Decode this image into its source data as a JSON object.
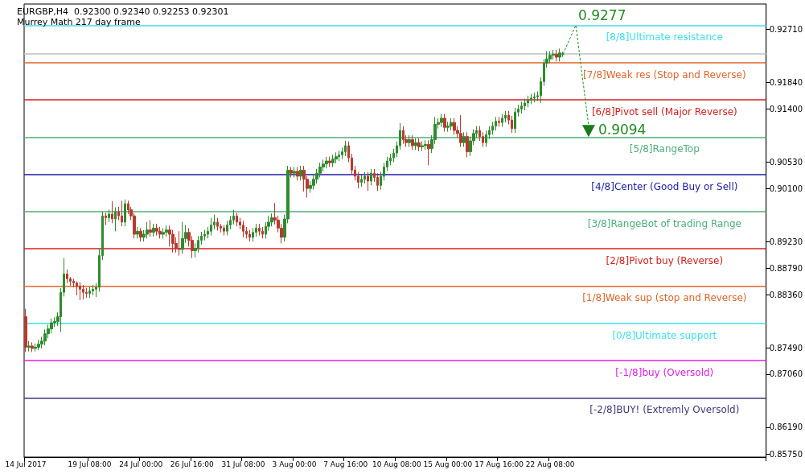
{
  "chart_data": {
    "type": "candlestick",
    "title": "EURGBP,H4  0.92300 0.92340 0.92253 0.92301",
    "subtitle": "Murrey Math 217 day frame",
    "categories": [
      "14 Jul 2017",
      null,
      null,
      null,
      null,
      null,
      null,
      null,
      null,
      null,
      null,
      null,
      null,
      null,
      null,
      null,
      null,
      null,
      null,
      null,
      "19 Jul 08:00",
      null,
      null,
      null,
      null,
      null,
      null,
      null,
      null,
      null,
      null,
      null,
      null,
      null,
      null,
      null,
      "24 Jul 00:00",
      null,
      null,
      null,
      null,
      null,
      null,
      null,
      null,
      null,
      null,
      null,
      null,
      null,
      null,
      null,
      "26 Jul 16:00",
      null,
      null,
      null,
      null,
      null,
      null,
      null,
      null,
      null,
      null,
      null,
      null,
      null,
      null,
      null,
      "31 Jul 08:00",
      null,
      null,
      null,
      null,
      null,
      null,
      null,
      null,
      null,
      null,
      null,
      null,
      null,
      null,
      null,
      "3 Aug 00:00",
      null,
      null,
      null,
      null,
      null,
      null,
      null,
      null,
      null,
      null,
      null,
      null,
      null,
      null,
      null,
      "7 Aug 16:00",
      null,
      null,
      null,
      null,
      null,
      null,
      null,
      null,
      null,
      null,
      null,
      null,
      null,
      null,
      null,
      "10 Aug 08:00",
      null,
      null,
      null,
      null,
      null,
      null,
      null,
      null,
      null,
      null,
      null,
      null,
      null,
      null,
      null,
      "15 Aug 00:00",
      null,
      null,
      null,
      null,
      null,
      null,
      null,
      null,
      null,
      null,
      null,
      null,
      null,
      null,
      null,
      "17 Aug 16:00",
      null,
      null,
      null,
      null,
      null,
      null,
      null,
      null,
      null,
      null,
      null,
      null,
      null,
      null,
      null,
      "22 Aug 08:00",
      null,
      null,
      null,
      null,
      null,
      null,
      null,
      null,
      null,
      null,
      null,
      null,
      null,
      null,
      null,
      null,
      null,
      null,
      null,
      null,
      null,
      null,
      null,
      null,
      null,
      null,
      null,
      null,
      null,
      null,
      null,
      null,
      null,
      null,
      null,
      null,
      null,
      null,
      null,
      null,
      null,
      null,
      null,
      null,
      null,
      null,
      null,
      null,
      null,
      null,
      null,
      null,
      null,
      null,
      null,
      null,
      null,
      null,
      null,
      null,
      null,
      null,
      null,
      null,
      null,
      null,
      null
    ],
    "colors": [
      "#b83a2e",
      "#2e8b2e",
      "#b83a2e",
      "#2e8b2e",
      "#2e8b2e",
      "#2e8b2e",
      "#2e8b2e",
      "#2e8b2e",
      "#2e8b2e",
      "#2e8b2e",
      "#2e8b2e",
      "#2e8b2e",
      "#2e8b2e",
      "#b83a2e",
      "#b83a2e",
      "#b83a2e",
      "#b83a2e",
      "#b83a2e",
      "#b83a2e",
      "#b83a2e",
      "#2e8b2e",
      "#2e8b2e",
      "#2e8b2e",
      "#2e8b2e",
      "#2e8b2e",
      "#b83a2e",
      "#2e8b2e",
      "#b83a2e",
      "#2e8b2e",
      "#b83a2e",
      "#b83a2e",
      "#2e8b2e",
      "#b83a2e",
      "#b83a2e",
      "#b83a2e",
      "#2e8b2e",
      "#b83a2e",
      "#2e8b2e",
      "#2e8b2e",
      "#b83a2e",
      "#2e8b2e",
      "#b83a2e",
      "#b83a2e",
      "#2e8b2e",
      "#2e8b2e",
      "#b83a2e",
      "#b83a2e",
      "#b83a2e",
      "#b83a2e",
      "#2e8b2e",
      "#2e8b2e",
      "#b83a2e",
      "#b83a2e",
      "#2e8b2e",
      "#2e8b2e",
      "#2e8b2e",
      "#2e8b2e",
      "#2e8b2e",
      "#2e8b2e",
      "#2e8b2e",
      "#b83a2e",
      "#b83a2e",
      "#b83a2e",
      "#2e8b2e",
      "#2e8b2e",
      "#2e8b2e",
      "#b83a2e",
      "#b83a2e",
      "#b83a2e",
      "#b83a2e",
      "#b83a2e",
      "#2e8b2e",
      "#2e8b2e",
      "#b83a2e",
      "#b83a2e",
      "#2e8b2e",
      "#2e8b2e",
      "#2e8b2e",
      "#b83a2e",
      "#b83a2e",
      "#b83a2e",
      "#2e8b2e",
      "#2e8b2e",
      "#b83a2e",
      "#2e8b2e",
      "#b83a2e",
      "#2e8b2e",
      "#b83a2e",
      "#b83a2e",
      "#2e8b2e",
      "#2e8b2e",
      "#2e8b2e",
      "#2e8b2e",
      "#2e8b2e",
      "#2e8b2e",
      "#b83a2e",
      "#2e8b2e",
      "#2e8b2e",
      "#2e8b2e",
      "#2e8b2e",
      "#2e8b2e",
      "#b83a2e",
      "#b83a2e",
      "#b83a2e",
      "#b83a2e",
      "#2e8b2e",
      "#2e8b2e",
      "#b83a2e",
      "#2e8b2e",
      "#b83a2e",
      "#b83a2e",
      "#2e8b2e",
      "#2e8b2e",
      "#2e8b2e",
      "#2e8b2e",
      "#2e8b2e",
      "#2e8b2e",
      "#2e8b2e",
      "#b83a2e",
      "#b83a2e",
      "#2e8b2e",
      "#b83a2e",
      "#2e8b2e",
      "#b83a2e",
      "#2e8b2e",
      "#2e8b2e",
      "#b83a2e",
      "#2e8b2e",
      "#2e8b2e",
      "#2e8b2e",
      "#2e8b2e",
      "#b83a2e",
      "#2e8b2e",
      "#2e8b2e",
      "#b83a2e",
      "#b83a2e",
      "#b83a2e",
      "#2e8b2e",
      "#b83a2e",
      "#2e8b2e",
      "#2e8b2e",
      "#2e8b2e",
      "#b83a2e",
      "#b83a2e",
      "#2e8b2e",
      "#2e8b2e",
      "#2e8b2e",
      "#2e8b2e",
      "#b83a2e",
      "#2e8b2e",
      "#2e8b2e",
      "#b83a2e",
      "#b83a2e",
      "#2e8b2e",
      "#2e8b2e",
      "#2e8b2e",
      "#2e8b2e",
      "#2e8b2e",
      "#2e8b2e",
      "#2e8b2e",
      "#2e8b2e",
      "#2e8b2e",
      "#2e8b2e",
      "#2e8b2e",
      "#2e8b2e",
      "#2e8b2e",
      "#b83a2e",
      "#2e8b2e",
      "#2e8b2e",
      null,
      null,
      null,
      null,
      null,
      null,
      null,
      null,
      null,
      null,
      null,
      null,
      null,
      null,
      null,
      null,
      null,
      null,
      null,
      null,
      null,
      null,
      null,
      null,
      null,
      null,
      null,
      null,
      null,
      null,
      null,
      null,
      null,
      null,
      null,
      null,
      null,
      null,
      null,
      null,
      null,
      null,
      null,
      null,
      null,
      null,
      null,
      null,
      null,
      null,
      null,
      null,
      null,
      null,
      null,
      null,
      null,
      null,
      null,
      null,
      null,
      null,
      null
    ],
    "ohlc": [
      [
        0.88,
        0.8813,
        0.8742,
        0.875
      ],
      [
        0.875,
        0.876,
        0.8743,
        0.8752
      ],
      [
        0.8752,
        0.8758,
        0.8742,
        0.8748
      ],
      [
        0.8748,
        0.8756,
        0.8743,
        0.875
      ],
      [
        0.875,
        0.8762,
        0.8745,
        0.8755
      ],
      [
        0.8755,
        0.8767,
        0.8748,
        0.876
      ],
      [
        0.876,
        0.8779,
        0.8753,
        0.8772
      ],
      [
        0.8772,
        0.8787,
        0.8765,
        0.878
      ],
      [
        0.878,
        0.8797,
        0.8773,
        0.879
      ],
      [
        0.879,
        0.8799,
        0.8783,
        0.8792
      ],
      [
        0.8792,
        0.8807,
        0.8785,
        0.88
      ],
      [
        0.88,
        0.8847,
        0.8775,
        0.884
      ],
      [
        0.884,
        0.8896,
        0.8833,
        0.887
      ],
      [
        0.887,
        0.8877,
        0.8855,
        0.8862
      ],
      [
        0.8862,
        0.8865,
        0.8851,
        0.8858
      ],
      [
        0.8858,
        0.8862,
        0.8848,
        0.8855
      ],
      [
        0.8855,
        0.8858,
        0.8835,
        0.885
      ],
      [
        0.885,
        0.8856,
        0.8827,
        0.8845
      ],
      [
        0.8845,
        0.8852,
        0.8828,
        0.884
      ],
      [
        0.884,
        0.8847,
        0.8831,
        0.8838
      ],
      [
        0.8838,
        0.8849,
        0.8831,
        0.8842
      ],
      [
        0.8842,
        0.8852,
        0.8835,
        0.8845
      ],
      [
        0.8845,
        0.8855,
        0.8832,
        0.8848
      ],
      [
        0.8848,
        0.8912,
        0.8841,
        0.89
      ],
      [
        0.89,
        0.8972,
        0.8893,
        0.8965
      ],
      [
        0.8965,
        0.897,
        0.895,
        0.8962
      ],
      [
        0.8962,
        0.8975,
        0.8955,
        0.8968
      ],
      [
        0.8968,
        0.8989,
        0.8953,
        0.896
      ],
      [
        0.896,
        0.8979,
        0.894,
        0.8972
      ],
      [
        0.8972,
        0.898,
        0.8958,
        0.8965
      ],
      [
        0.8965,
        0.899,
        0.8948,
        0.8955
      ],
      [
        0.8955,
        0.8992,
        0.8948,
        0.8985
      ],
      [
        0.8985,
        0.899,
        0.8968,
        0.8975
      ],
      [
        0.8975,
        0.898,
        0.8958,
        0.8965
      ],
      [
        0.8965,
        0.897,
        0.8928,
        0.8935
      ],
      [
        0.8935,
        0.8947,
        0.8928,
        0.894
      ],
      [
        0.894,
        0.8945,
        0.8923,
        0.893
      ],
      [
        0.893,
        0.8942,
        0.8923,
        0.8935
      ],
      [
        0.8935,
        0.8955,
        0.8928,
        0.8942
      ],
      [
        0.8942,
        0.8958,
        0.8931,
        0.8938
      ],
      [
        0.8938,
        0.8952,
        0.8931,
        0.8945
      ],
      [
        0.8945,
        0.8952,
        0.8933,
        0.894
      ],
      [
        0.894,
        0.8947,
        0.8928,
        0.8935
      ],
      [
        0.8935,
        0.8945,
        0.8928,
        0.8938
      ],
      [
        0.8938,
        0.8949,
        0.8931,
        0.8942
      ],
      [
        0.8942,
        0.8949,
        0.8915,
        0.8935
      ],
      [
        0.8935,
        0.8942,
        0.8905,
        0.892
      ],
      [
        0.892,
        0.893,
        0.8905,
        0.8912
      ],
      [
        0.8912,
        0.894,
        0.89,
        0.891
      ],
      [
        0.891,
        0.8955,
        0.8903,
        0.8928
      ],
      [
        0.8928,
        0.895,
        0.8921,
        0.8938
      ],
      [
        0.8938,
        0.8945,
        0.8915,
        0.8925
      ],
      [
        0.8925,
        0.8932,
        0.8896,
        0.8908
      ],
      [
        0.8908,
        0.892,
        0.8897,
        0.8912
      ],
      [
        0.8912,
        0.8932,
        0.8905,
        0.8925
      ],
      [
        0.8925,
        0.8939,
        0.8918,
        0.8932
      ],
      [
        0.8932,
        0.8942,
        0.8925,
        0.8935
      ],
      [
        0.8935,
        0.8947,
        0.8928,
        0.894
      ],
      [
        0.894,
        0.8962,
        0.8933,
        0.895
      ],
      [
        0.895,
        0.8967,
        0.8943,
        0.8955
      ],
      [
        0.8955,
        0.8962,
        0.8941,
        0.8948
      ],
      [
        0.8948,
        0.8952,
        0.8938,
        0.8945
      ],
      [
        0.8945,
        0.895,
        0.8933,
        0.894
      ],
      [
        0.894,
        0.8957,
        0.8933,
        0.895
      ],
      [
        0.895,
        0.8965,
        0.8943,
        0.8958
      ],
      [
        0.8958,
        0.8975,
        0.8951,
        0.8965
      ],
      [
        0.8965,
        0.897,
        0.8948,
        0.8955
      ],
      [
        0.8955,
        0.8962,
        0.8943,
        0.895
      ],
      [
        0.895,
        0.8957,
        0.893,
        0.894
      ],
      [
        0.894,
        0.8947,
        0.8928,
        0.8935
      ],
      [
        0.8935,
        0.8942,
        0.8923,
        0.893
      ],
      [
        0.893,
        0.8945,
        0.8923,
        0.8938
      ],
      [
        0.8938,
        0.8952,
        0.8931,
        0.8945
      ],
      [
        0.8945,
        0.8952,
        0.8933,
        0.894
      ],
      [
        0.894,
        0.8947,
        0.8928,
        0.8935
      ],
      [
        0.8935,
        0.8955,
        0.8928,
        0.8948
      ],
      [
        0.8948,
        0.8965,
        0.8941,
        0.8955
      ],
      [
        0.8955,
        0.8969,
        0.8948,
        0.8962
      ],
      [
        0.8962,
        0.8986,
        0.8951,
        0.8958
      ],
      [
        0.8958,
        0.8965,
        0.8938,
        0.8945
      ],
      [
        0.8945,
        0.8952,
        0.892,
        0.893
      ],
      [
        0.893,
        0.8967,
        0.8923,
        0.896
      ],
      [
        0.896,
        0.9047,
        0.8953,
        0.904
      ],
      [
        0.904,
        0.9045,
        0.9028,
        0.9035
      ],
      [
        0.9035,
        0.9045,
        0.9028,
        0.9038
      ],
      [
        0.9038,
        0.9045,
        0.9023,
        0.903
      ],
      [
        0.903,
        0.9047,
        0.9023,
        0.904
      ],
      [
        0.904,
        0.9047,
        0.9005,
        0.9025
      ],
      [
        0.9025,
        0.903,
        0.8995,
        0.901
      ],
      [
        0.901,
        0.9022,
        0.9003,
        0.9015
      ],
      [
        0.9015,
        0.9032,
        0.9008,
        0.9025
      ],
      [
        0.9025,
        0.9042,
        0.9018,
        0.9035
      ],
      [
        0.9035,
        0.9052,
        0.9028,
        0.9045
      ],
      [
        0.9045,
        0.9057,
        0.9038,
        0.905
      ],
      [
        0.905,
        0.9062,
        0.9043,
        0.9055
      ],
      [
        0.9055,
        0.9062,
        0.9045,
        0.9052
      ],
      [
        0.9052,
        0.9065,
        0.9045,
        0.9058
      ],
      [
        0.9058,
        0.9069,
        0.9051,
        0.9062
      ],
      [
        0.9062,
        0.9072,
        0.9055,
        0.9065
      ],
      [
        0.9065,
        0.9077,
        0.9058,
        0.907
      ],
      [
        0.907,
        0.9088,
        0.9063,
        0.908
      ],
      [
        0.908,
        0.9087,
        0.9053,
        0.906
      ],
      [
        0.906,
        0.9067,
        0.9033,
        0.904
      ],
      [
        0.904,
        0.9047,
        0.9023,
        0.903
      ],
      [
        0.903,
        0.9037,
        0.901,
        0.902
      ],
      [
        0.902,
        0.9032,
        0.9013,
        0.9025
      ],
      [
        0.9025,
        0.9037,
        0.9018,
        0.903
      ],
      [
        0.903,
        0.9037,
        0.9006,
        0.9022
      ],
      [
        0.9022,
        0.9042,
        0.9015,
        0.9035
      ],
      [
        0.9035,
        0.9042,
        0.9021,
        0.9028
      ],
      [
        0.9028,
        0.9035,
        0.9006,
        0.9015
      ],
      [
        0.9015,
        0.9037,
        0.9008,
        0.903
      ],
      [
        0.903,
        0.9052,
        0.9023,
        0.9045
      ],
      [
        0.9045,
        0.9062,
        0.9038,
        0.9055
      ],
      [
        0.9055,
        0.9067,
        0.9048,
        0.906
      ],
      [
        0.906,
        0.9075,
        0.9053,
        0.9068
      ],
      [
        0.9068,
        0.9087,
        0.9061,
        0.908
      ],
      [
        0.908,
        0.9117,
        0.9073,
        0.9105
      ],
      [
        0.9105,
        0.9112,
        0.9083,
        0.909
      ],
      [
        0.909,
        0.9097,
        0.9078,
        0.9085
      ],
      [
        0.9085,
        0.9097,
        0.9078,
        0.909
      ],
      [
        0.909,
        0.9097,
        0.9073,
        0.908
      ],
      [
        0.908,
        0.9092,
        0.9073,
        0.9085
      ],
      [
        0.9085,
        0.9092,
        0.9071,
        0.9078
      ],
      [
        0.9078,
        0.9087,
        0.9071,
        0.908
      ],
      [
        0.908,
        0.9089,
        0.9073,
        0.9082
      ],
      [
        0.9082,
        0.9089,
        0.9048,
        0.9075
      ],
      [
        0.9075,
        0.9097,
        0.9068,
        0.909
      ],
      [
        0.909,
        0.9127,
        0.9083,
        0.9115
      ],
      [
        0.9115,
        0.9125,
        0.9108,
        0.9118
      ],
      [
        0.9118,
        0.9132,
        0.9111,
        0.9125
      ],
      [
        0.9125,
        0.9132,
        0.9103,
        0.911
      ],
      [
        0.911,
        0.9119,
        0.9103,
        0.9112
      ],
      [
        0.9112,
        0.9125,
        0.9105,
        0.9118
      ],
      [
        0.9118,
        0.9125,
        0.9098,
        0.9105
      ],
      [
        0.9105,
        0.9112,
        0.9093,
        0.91
      ],
      [
        0.91,
        0.913,
        0.9078,
        0.9085
      ],
      [
        0.9085,
        0.9102,
        0.9078,
        0.9095
      ],
      [
        0.9095,
        0.9102,
        0.9061,
        0.907
      ],
      [
        0.907,
        0.9095,
        0.9063,
        0.9088
      ],
      [
        0.9088,
        0.9107,
        0.9081,
        0.91
      ],
      [
        0.91,
        0.9112,
        0.9093,
        0.9105
      ],
      [
        0.9105,
        0.9112,
        0.9088,
        0.9095
      ],
      [
        0.9095,
        0.9102,
        0.9078,
        0.9085
      ],
      [
        0.9085,
        0.9105,
        0.9078,
        0.9098
      ],
      [
        0.9098,
        0.9112,
        0.9091,
        0.9105
      ],
      [
        0.9105,
        0.9119,
        0.9098,
        0.9112
      ],
      [
        0.9112,
        0.9127,
        0.9105,
        0.912
      ],
      [
        0.912,
        0.9127,
        0.9111,
        0.9118
      ],
      [
        0.9118,
        0.9132,
        0.9111,
        0.9125
      ],
      [
        0.9125,
        0.9137,
        0.9118,
        0.913
      ],
      [
        0.913,
        0.9137,
        0.9115,
        0.9122
      ],
      [
        0.9122,
        0.9129,
        0.9101,
        0.9108
      ],
      [
        0.9108,
        0.9142,
        0.9101,
        0.9135
      ],
      [
        0.9135,
        0.9147,
        0.9128,
        0.914
      ],
      [
        0.914,
        0.9152,
        0.9133,
        0.9145
      ],
      [
        0.9145,
        0.9157,
        0.9138,
        0.915
      ],
      [
        0.915,
        0.9162,
        0.9143,
        0.9155
      ],
      [
        0.9155,
        0.9165,
        0.9148,
        0.9158
      ],
      [
        0.9158,
        0.9167,
        0.9151,
        0.916
      ],
      [
        0.916,
        0.9169,
        0.9153,
        0.9162
      ],
      [
        0.9162,
        0.9192,
        0.915,
        0.9185
      ],
      [
        0.9185,
        0.9222,
        0.9178,
        0.9215
      ],
      [
        0.9215,
        0.9235,
        0.9208,
        0.9222
      ],
      [
        0.9222,
        0.9235,
        0.9215,
        0.9228
      ],
      [
        0.9228,
        0.9237,
        0.9221,
        0.923
      ],
      [
        0.923,
        0.9237,
        0.9218,
        0.9225
      ],
      [
        0.9225,
        0.9239,
        0.9218,
        0.9232
      ],
      [
        0.923,
        0.9234,
        0.92253,
        0.92301
      ],
      null,
      null,
      null,
      null,
      null,
      null,
      null,
      null,
      null,
      null,
      null,
      null,
      null,
      null,
      null,
      null,
      null,
      null,
      null,
      null,
      null,
      null,
      null,
      null,
      null,
      null,
      null,
      null,
      null,
      null,
      null,
      null,
      null,
      null,
      null,
      null,
      null,
      null,
      null,
      null,
      null,
      null,
      null,
      null,
      null,
      null,
      null,
      null,
      null,
      null,
      null,
      null,
      null,
      null,
      null,
      null,
      null,
      null,
      null,
      null,
      null,
      null,
      null
    ],
    "ylim": [
      0.857,
      0.9312
    ],
    "yticks": [
      {
        "value": 0.8575,
        "label": "0.85750"
      },
      {
        "value": 0.8619,
        "label": "0.86190"
      },
      {
        "value": 0.8706,
        "label": "0.87060"
      },
      {
        "value": 0.8749,
        "label": "0.87490"
      },
      {
        "value": 0.8836,
        "label": "0.88360"
      },
      {
        "value": 0.8879,
        "label": "0.88790"
      },
      {
        "value": 0.8923,
        "label": "0.89230"
      },
      {
        "value": 0.901,
        "label": "0.90100"
      },
      {
        "value": 0.9053,
        "label": "0.90530"
      },
      {
        "value": 0.914,
        "label": "0.91400"
      },
      {
        "value": 0.9184,
        "label": "0.91840"
      },
      {
        "value": 0.9271,
        "label": "0.92710"
      }
    ],
    "ref_lines": [
      {
        "axis": "y",
        "value": 0.92773,
        "label": "[8/8]Ultimate resistance",
        "color": "#40e0e8"
      },
      {
        "axis": "y",
        "value": 0.92301,
        "label": null,
        "color": "#c0c0c0"
      },
      {
        "axis": "y",
        "value": 0.92163,
        "label": "[7/8]Weak res (Stop and Reverse)",
        "color": "#e0652a"
      },
      {
        "axis": "y",
        "value": 0.91553,
        "label": "[6/8]Pivot sell (Major Reverse)",
        "color": "#d42020"
      },
      {
        "axis": "y",
        "value": 0.90942,
        "label": "[5/8]RangeTop",
        "color": "#4caf7a"
      },
      {
        "axis": "y",
        "value": 0.90332,
        "label": "[4/8]Center (Good Buy or Sell)",
        "color": "#1a1aa8"
      },
      {
        "axis": "y",
        "value": 0.89722,
        "label": "[3/8]RangeBot of trading Range",
        "color": "#4caf7a"
      },
      {
        "axis": "y",
        "value": 0.89111,
        "label": "[2/8]Pivot buy (Reverse)",
        "color": "#d42020"
      },
      {
        "axis": "y",
        "value": 0.88501,
        "label": "[1/8]Weak sup (stop and Reverse)",
        "color": "#e0652a"
      },
      {
        "axis": "y",
        "value": 0.87891,
        "label": "[0/8]Ultimate support",
        "color": "#40e0e8"
      },
      {
        "axis": "y",
        "value": 0.8728,
        "label": "[-1/8]buy (Oversold)",
        "color": "#e020e0"
      },
      {
        "axis": "y",
        "value": 0.8667,
        "label": "[-2/8]BUY! (Extremly Oversold)",
        "color": "#3c3c78"
      }
    ],
    "annotations": [
      "0.9277",
      "0.9094"
    ]
  }
}
